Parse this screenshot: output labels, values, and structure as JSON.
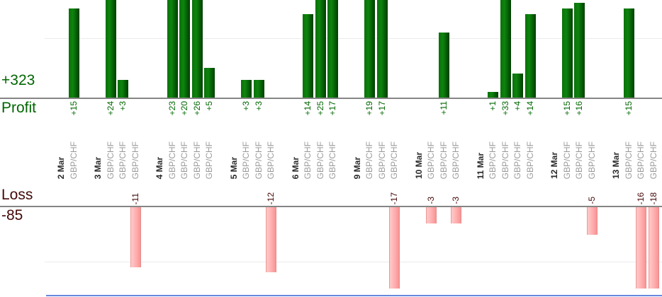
{
  "labels": {
    "profit_total": "+323",
    "profit_axis": "Profit",
    "loss_total": "-85",
    "loss_axis": "Loss"
  },
  "chart_data": {
    "type": "bar",
    "orientation": "vertical",
    "instrument": "GBP/CHF",
    "profit_section": {
      "axis_label": "Profit",
      "total": 323,
      "visible_value_range": [
        0,
        16
      ],
      "gridline_value": 10,
      "bars_clipped_above": 16
    },
    "loss_section": {
      "axis_label": "Loss",
      "total": -85,
      "visible_value_range": [
        0,
        -15
      ],
      "gridline_value": -10,
      "bars_clipped_below": -15
    },
    "grid": true,
    "legend": false,
    "groups": [
      {
        "date": "2 Mar",
        "trades": [
          15
        ]
      },
      {
        "date": "3 Mar",
        "trades": [
          24,
          3,
          -11
        ]
      },
      {
        "date": "4 Mar",
        "trades": [
          23,
          20,
          26,
          5
        ]
      },
      {
        "date": "5 Mar",
        "trades": [
          3,
          3,
          -12
        ]
      },
      {
        "date": "6 Mar",
        "trades": [
          14,
          25,
          17
        ]
      },
      {
        "date": "9 Mar",
        "trades": [
          19,
          17,
          -17
        ]
      },
      {
        "date": "10 Mar",
        "trades": [
          -3,
          11,
          -3
        ]
      },
      {
        "date": "11 Mar",
        "trades": [
          1,
          33,
          4,
          14
        ]
      },
      {
        "date": "12 Mar",
        "trades": [
          15,
          16,
          -5
        ]
      },
      {
        "date": "13 Mar",
        "trades": [
          15,
          -16,
          -18
        ]
      }
    ]
  },
  "colors": {
    "profit_bar": "#0d850d",
    "profit_text": "#006600",
    "loss_bar_fill": "#ffb3b3",
    "loss_text": "#450808",
    "date_text": "#2b2b2b",
    "instrument_text": "#9b9b9b",
    "axis": "#858585",
    "gridline": "#ebebeb",
    "bottom_line": "#6688dd"
  }
}
